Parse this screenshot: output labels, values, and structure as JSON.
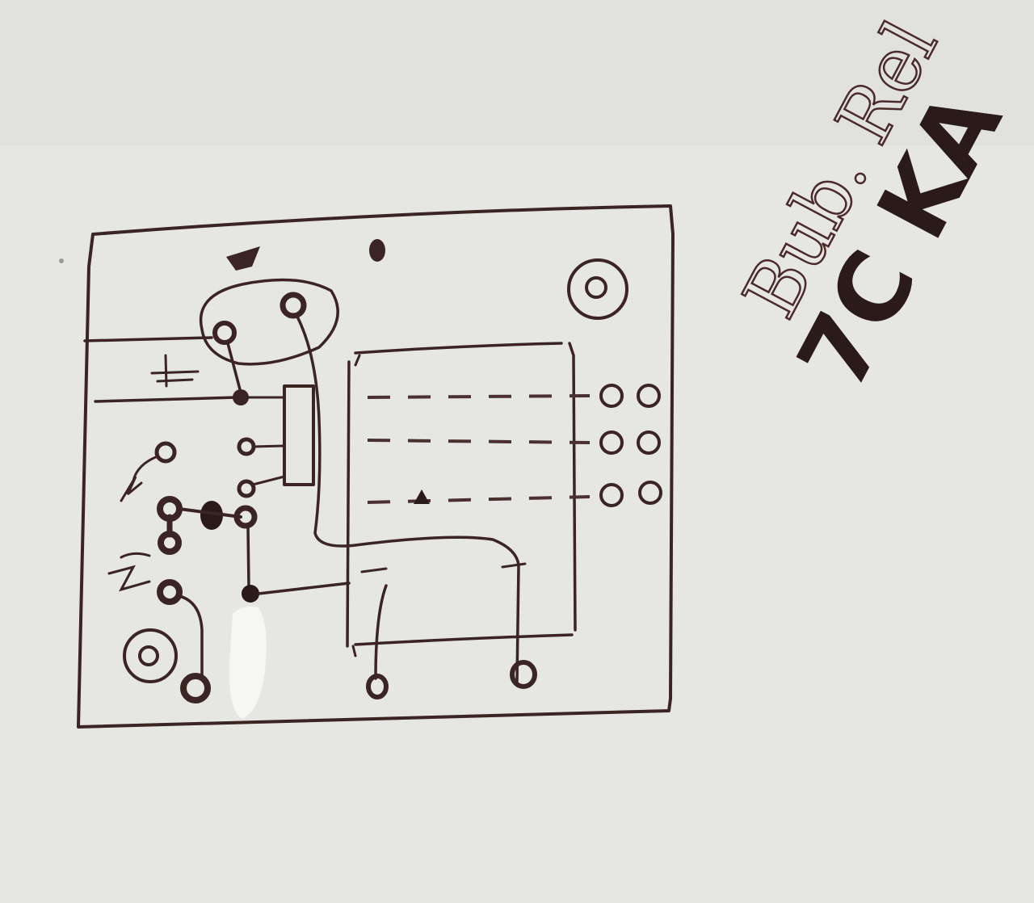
{
  "annotations": {
    "line1": "Bub. Rel",
    "line2": "7C KA"
  },
  "colors": {
    "paper": "#e6e6e3",
    "ink": "#3a2424"
  }
}
